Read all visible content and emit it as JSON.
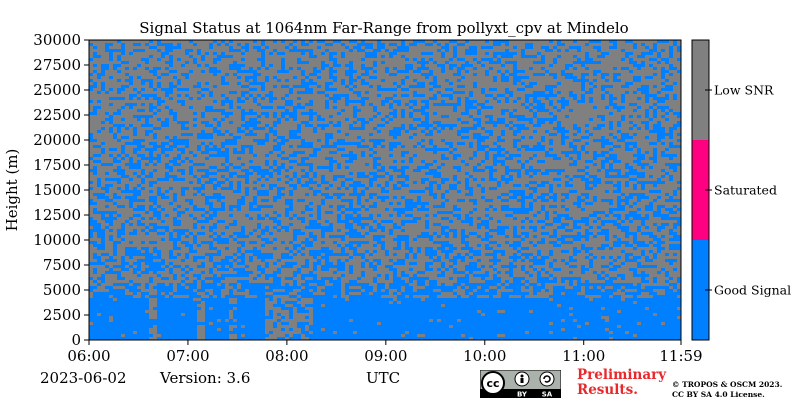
{
  "chart_data": {
    "type": "heatmap",
    "title": "Signal Status at 1064nm Far-Range from pollyxt_cpv at Mindelo",
    "ylabel": "Height (m)",
    "xlabel": "UTC",
    "x_ticks": [
      "06:00",
      "07:00",
      "08:00",
      "09:00",
      "10:00",
      "11:00",
      "11:59"
    ],
    "y_ticks": [
      "0",
      "2500",
      "5000",
      "7500",
      "10000",
      "12500",
      "15000",
      "17500",
      "20000",
      "22500",
      "25000",
      "27500",
      "30000"
    ],
    "y_range": [
      0,
      30000
    ],
    "categories": [
      {
        "label": "Good Signal",
        "color": "#0080ff"
      },
      {
        "label": "Saturated",
        "color": "#ff0080"
      },
      {
        "label": "Low SNR",
        "color": "#808080"
      }
    ]
  },
  "footer": {
    "date": "2023-06-02",
    "version": "Version: 3.6",
    "prelim_line1": "Preliminary",
    "prelim_line2": "Results.",
    "copyright_line1": "© TROPOS & OSCM 2023.",
    "copyright_line2": "CC BY SA 4.0 License."
  },
  "license_badge": {
    "left": "cc",
    "right_top": "",
    "by": "BY",
    "sa": "SA"
  }
}
